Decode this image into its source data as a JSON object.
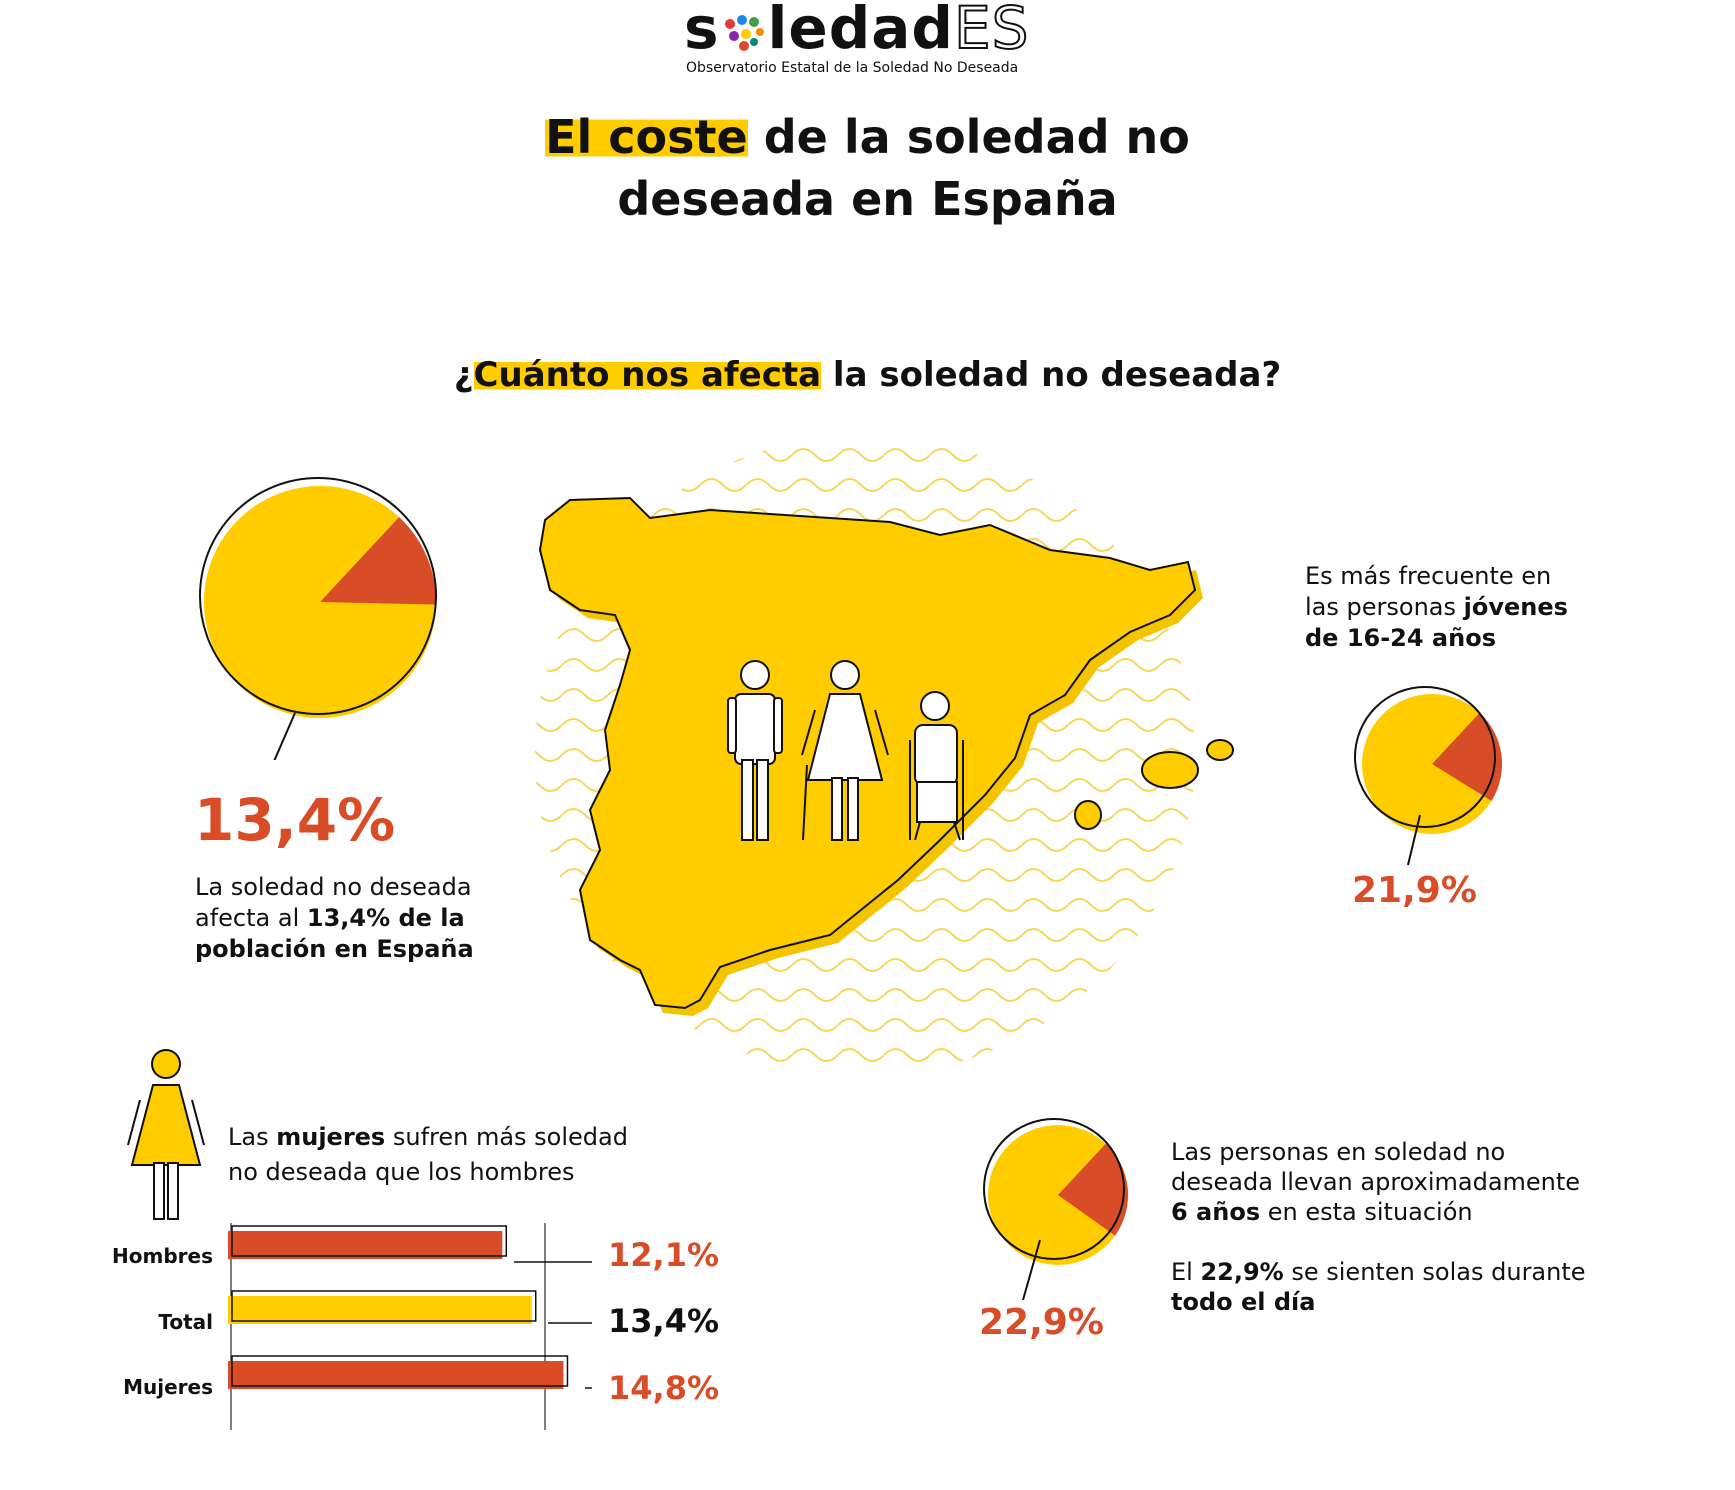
{
  "logo": {
    "brand_prefix": "s",
    "brand_middle": "ledad",
    "brand_suffix": "ES",
    "subtitle": "Observatorio Estatal de la Soledad No Deseada"
  },
  "title": {
    "highlight": "El coste",
    "line1_rest": " de la soledad no",
    "line2": "deseada en España"
  },
  "question": {
    "prefix": "¿",
    "highlight": "Cuánto nos afecta",
    "rest": " la soledad no deseada?"
  },
  "stat_population": {
    "value": "13,4%",
    "text_1": "La soledad no deseada",
    "text_2a": "afecta al ",
    "text_2b": "13,4% de la",
    "text_3": "población en España"
  },
  "stat_youth": {
    "value": "21,9%",
    "text_1": "Es más frecuente en",
    "text_2a": "las personas ",
    "text_2b": "jóvenes",
    "text_3": "de 16-24 años"
  },
  "stat_women": {
    "text_1a": "Las ",
    "text_1b": "mujeres",
    "text_1c": " sufren más soledad",
    "text_2": "no deseada que los hombres"
  },
  "stat_duration": {
    "value": "22,9%",
    "text_1": "Las personas en soledad no",
    "text_2": "deseada llevan aproximadamente",
    "text_3a": "6 años",
    "text_3b": " en esta situación",
    "text_4a": "El ",
    "text_4b": "22,9%",
    "text_4c": " se sienten solas durante",
    "text_5": "todo el día"
  },
  "colors": {
    "accent": "#ffcc00",
    "highlight_red": "#d84c27",
    "text": "#111111"
  },
  "chart_data": [
    {
      "type": "pie",
      "name": "Población afectada",
      "slices": [
        {
          "label": "Soledad no deseada",
          "value": 13.4,
          "color": "#d84c27"
        },
        {
          "label": "Resto",
          "value": 86.6,
          "color": "#ffcc00"
        }
      ]
    },
    {
      "type": "pie",
      "name": "Jóvenes 16-24 años",
      "slices": [
        {
          "label": "Soledad no deseada",
          "value": 21.9,
          "color": "#d84c27"
        },
        {
          "label": "Resto",
          "value": 78.1,
          "color": "#ffcc00"
        }
      ]
    },
    {
      "type": "pie",
      "name": "Solas todo el día",
      "slices": [
        {
          "label": "Todo el día",
          "value": 22.9,
          "color": "#d84c27"
        },
        {
          "label": "Resto",
          "value": 77.1,
          "color": "#ffcc00"
        }
      ]
    },
    {
      "type": "bar",
      "orientation": "horizontal",
      "categories": [
        "Hombres",
        "Total",
        "Mujeres"
      ],
      "values": [
        12.1,
        13.4,
        14.8
      ],
      "value_labels": [
        "12,1%",
        "13,4%",
        "14,8%"
      ],
      "colors": [
        "#d84c27",
        "#ffcc00",
        "#d84c27"
      ],
      "xlim": [
        0,
        15
      ]
    }
  ]
}
